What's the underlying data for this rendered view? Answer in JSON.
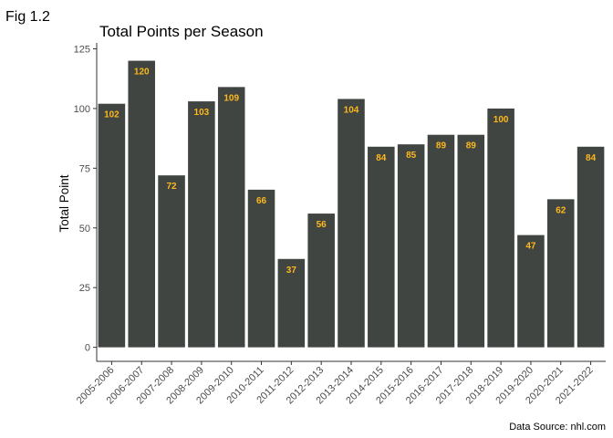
{
  "figure": {
    "label": "Fig 1.2",
    "caption": "Data Source: nhl.com"
  },
  "colors": {
    "bar": "#404541",
    "data_label": "#FFB81C",
    "axis": "#333333"
  },
  "chart_data": {
    "type": "bar",
    "title": "Total Points per Season",
    "xlabel": "",
    "ylabel": "Total Point",
    "categories": [
      "2005-2006",
      "2006-2007",
      "2007-2008",
      "2008-2009",
      "2009-2010",
      "2010-2011",
      "2011-2012",
      "2012-2013",
      "2013-2014",
      "2014-2015",
      "2015-2016",
      "2016-2017",
      "2017-2018",
      "2018-2019",
      "2019-2020",
      "2020-2021",
      "2021-2022"
    ],
    "values": [
      102,
      120,
      72,
      103,
      109,
      66,
      37,
      56,
      104,
      84,
      85,
      89,
      89,
      100,
      47,
      62,
      84
    ],
    "ylim": [
      0,
      125
    ],
    "yticks": [
      0,
      25,
      50,
      75,
      100,
      125
    ],
    "grid": false,
    "legend": "none",
    "data_labels": true
  }
}
